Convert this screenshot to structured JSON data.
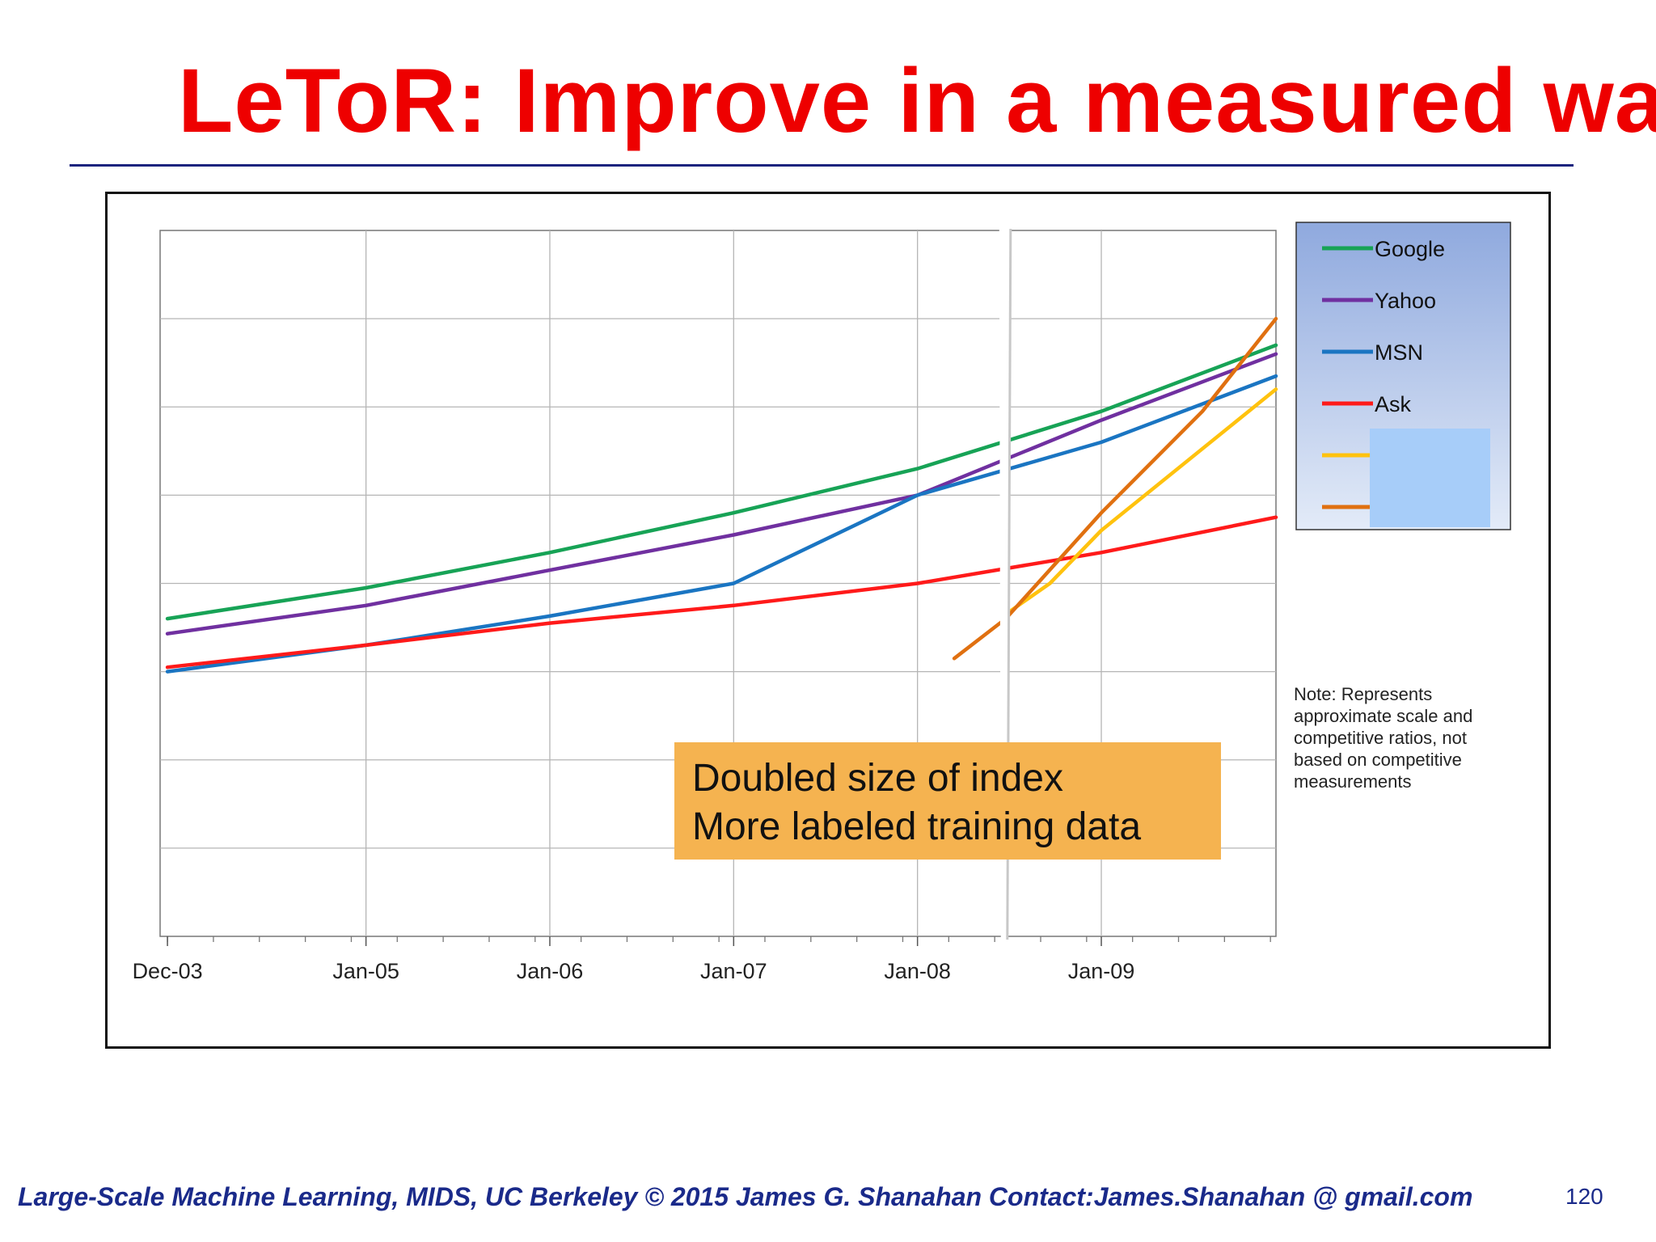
{
  "slide": {
    "title": "LeToR: Improve in a measured way",
    "footer": "Large-Scale Machine Learning, MIDS, UC Berkeley ©  2015 James G. Shanahan    Contact:James.Shanahan @ gmail.com",
    "page_number": "120"
  },
  "chart_data": {
    "type": "line",
    "title": "",
    "xlabel": "",
    "ylabel": "",
    "x_tick_labels": [
      "Dec-03",
      "Jan-05",
      "Jan-06",
      "Jan-07",
      "Jan-08",
      "Jan-09"
    ],
    "x_ticks": [
      2003.92,
      2005.0,
      2006.0,
      2007.0,
      2008.0,
      2009.0
    ],
    "xlim": [
      2003.88,
      2009.95
    ],
    "ylim": [
      0,
      8
    ],
    "grid": true,
    "y_tick_labels_shown": false,
    "axis_break_x": 2008.48,
    "series": [
      {
        "name": "Google",
        "color": "#17a356",
        "x": [
          2003.92,
          2005.0,
          2006.0,
          2007.0,
          2008.0,
          2009.0,
          2009.95
        ],
        "y": [
          3.6,
          3.95,
          4.35,
          4.8,
          5.3,
          5.95,
          6.7
        ]
      },
      {
        "name": "Yahoo",
        "color": "#7030a0",
        "x": [
          2003.92,
          2005.0,
          2006.0,
          2007.0,
          2008.0,
          2009.0,
          2009.95
        ],
        "y": [
          3.43,
          3.75,
          4.15,
          4.55,
          5.0,
          5.85,
          6.6
        ]
      },
      {
        "name": "MSN",
        "color": "#1a75c2",
        "x": [
          2003.92,
          2005.0,
          2006.0,
          2007.0,
          2008.0,
          2009.0,
          2009.95
        ],
        "y": [
          3.0,
          3.3,
          3.63,
          4.0,
          5.0,
          5.6,
          6.35
        ]
      },
      {
        "name": "Ask",
        "color": "#ff1a1a",
        "x": [
          2003.92,
          2005.0,
          2006.0,
          2007.0,
          2008.0,
          2009.0,
          2009.95
        ],
        "y": [
          3.05,
          3.3,
          3.55,
          3.75,
          4.0,
          4.35,
          4.75
        ]
      },
      {
        "name": "",
        "color": "#ffc20e",
        "x": [
          2008.48,
          2008.72,
          2009.0,
          2009.95
        ],
        "y": [
          3.65,
          4.0,
          4.6,
          6.2
        ]
      },
      {
        "name": "",
        "color": "#e07010",
        "x": [
          2008.2,
          2008.48,
          2009.0,
          2009.55,
          2009.95
        ],
        "y": [
          3.15,
          3.6,
          4.8,
          5.95,
          7.0
        ]
      }
    ],
    "legend": {
      "placement": "right",
      "entries": [
        "Google",
        "Yahoo",
        "MSN",
        "Ask"
      ]
    },
    "callout": [
      "Doubled size of index",
      "More labeled training data"
    ],
    "note": [
      "Note: Represents",
      "approximate scale and",
      "competitive ratios, not",
      "based on competitive",
      "measurements"
    ]
  },
  "colors": {
    "title": "#ee0000",
    "footer": "#1a2a8a",
    "callout_bg": "#f5b350",
    "legend_bg_top": "#92aee0",
    "legend_bg_bottom": "#dde6f6",
    "legend_mask": "#a7cdf9"
  }
}
